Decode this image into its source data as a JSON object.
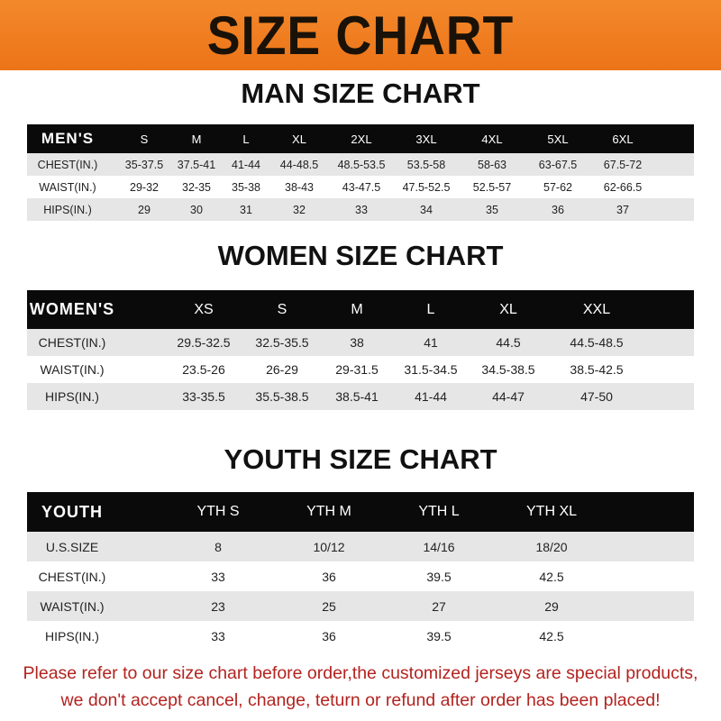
{
  "banner": "SIZE CHART",
  "men": {
    "title": "MAN SIZE CHART",
    "header": [
      "MEN'S",
      "S",
      "M",
      "L",
      "XL",
      "2XL",
      "3XL",
      "4XL",
      "5XL",
      "6XL"
    ],
    "rows": [
      [
        "CHEST(IN.)",
        "35-37.5",
        "37.5-41",
        "41-44",
        "44-48.5",
        "48.5-53.5",
        "53.5-58",
        "58-63",
        "63-67.5",
        "67.5-72"
      ],
      [
        "WAIST(IN.)",
        "29-32",
        "32-35",
        "35-38",
        "38-43",
        "43-47.5",
        "47.5-52.5",
        "52.5-57",
        "57-62",
        "62-66.5"
      ],
      [
        "HIPS(IN.)",
        "29",
        "30",
        "31",
        "32",
        "33",
        "34",
        "35",
        "36",
        "37"
      ]
    ]
  },
  "women": {
    "title": "WOMEN SIZE CHART",
    "header": [
      "WOMEN'S",
      "XS",
      "S",
      "M",
      "L",
      "XL",
      "XXL"
    ],
    "rows": [
      [
        "CHEST(IN.)",
        "29.5-32.5",
        "32.5-35.5",
        "38",
        "41",
        "44.5",
        "44.5-48.5"
      ],
      [
        "WAIST(IN.)",
        "23.5-26",
        "26-29",
        "29-31.5",
        "31.5-34.5",
        "34.5-38.5",
        "38.5-42.5"
      ],
      [
        "HIPS(IN.)",
        "33-35.5",
        "35.5-38.5",
        "38.5-41",
        "41-44",
        "44-47",
        "47-50"
      ]
    ]
  },
  "youth": {
    "title": "YOUTH SIZE CHART",
    "header": [
      "YOUTH",
      "YTH S",
      "YTH M",
      "YTH L",
      "YTH XL"
    ],
    "rows": [
      [
        "U.S.SIZE",
        "8",
        "10/12",
        "14/16",
        "18/20"
      ],
      [
        "CHEST(IN.)",
        "33",
        "36",
        "39.5",
        "42.5"
      ],
      [
        "WAIST(IN.)",
        "23",
        "25",
        "27",
        "29"
      ],
      [
        "HIPS(IN.)",
        "33",
        "36",
        "39.5",
        "42.5"
      ]
    ]
  },
  "notice": [
    "Please refer to our size chart before order,the customized jerseys are special products,",
    "we don't accept cancel, change, teturn or refund after order has been placed!"
  ],
  "colors": {
    "banner": "#ec7418",
    "header_row": "#0a0a0a",
    "notice": "#b3231f"
  }
}
